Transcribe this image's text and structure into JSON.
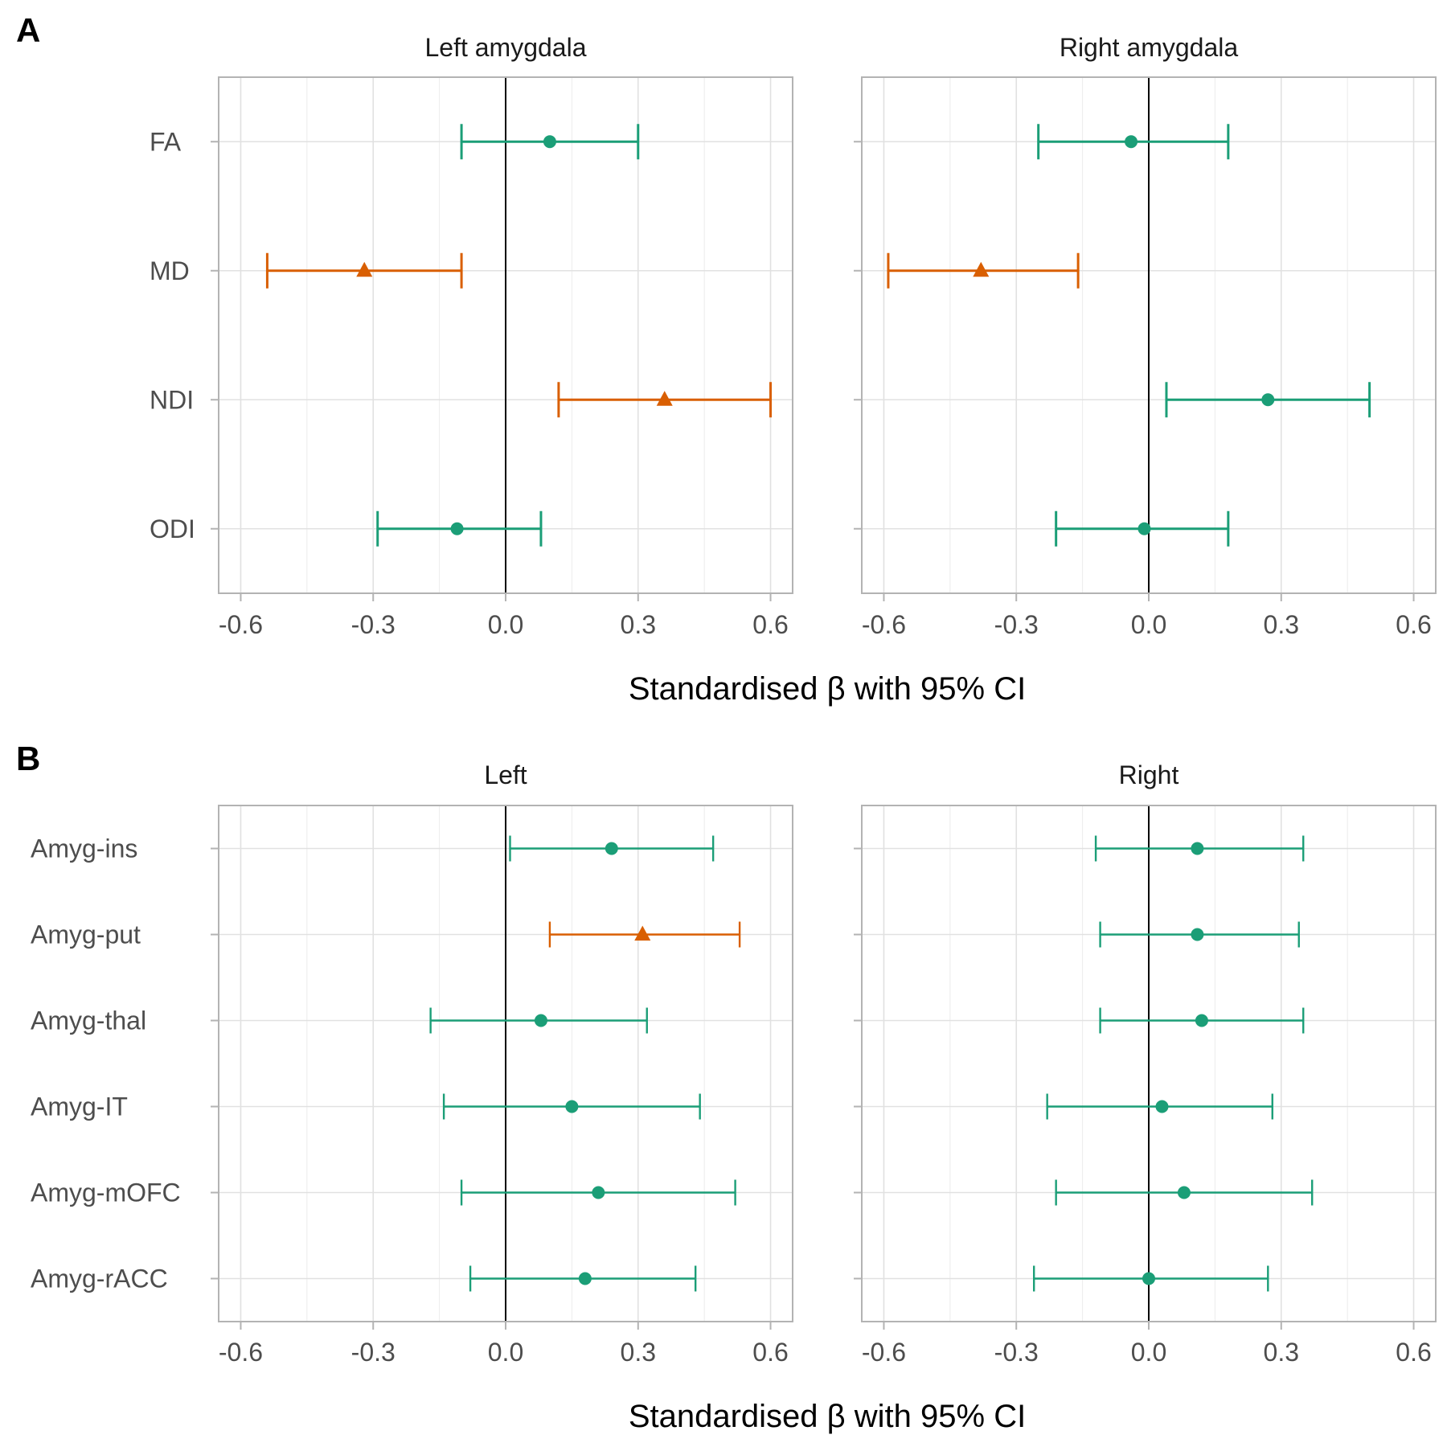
{
  "figure": {
    "palette": {
      "nonsig": "#1b9e77",
      "sig": "#d95f02",
      "grid": "#e1e1e1",
      "frame": "#b3b3b3",
      "text": "#4d4d4d"
    }
  },
  "chart_data": [
    {
      "type": "scatter",
      "variant": "forest-plot",
      "panel_letter": "A",
      "xlabel": "Standardised β with 95% CI",
      "xlim": [
        -0.65,
        0.65
      ],
      "xticks": [
        -0.6,
        -0.3,
        0.0,
        0.3,
        0.6
      ],
      "xtick_labels": [
        "-0.6",
        "-0.3",
        "0.0",
        "0.3",
        "0.6"
      ],
      "reference_line": 0,
      "grid": true,
      "categories": [
        "FA",
        "MD",
        "NDI",
        "ODI"
      ],
      "facets": [
        {
          "title": "Left amygdala",
          "estimates": [
            0.1,
            -0.32,
            0.36,
            -0.11
          ],
          "lower": [
            -0.1,
            -0.54,
            0.12,
            -0.29
          ],
          "upper": [
            0.3,
            -0.1,
            0.6,
            0.08
          ],
          "significant": [
            false,
            true,
            true,
            false
          ]
        },
        {
          "title": "Right amygdala",
          "estimates": [
            -0.04,
            -0.38,
            0.27,
            -0.01
          ],
          "lower": [
            -0.25,
            -0.59,
            0.04,
            -0.21
          ],
          "upper": [
            0.18,
            -0.16,
            0.5,
            0.18
          ],
          "significant": [
            false,
            true,
            false,
            false
          ]
        }
      ]
    },
    {
      "type": "scatter",
      "variant": "forest-plot",
      "panel_letter": "B",
      "xlabel": "Standardised β with 95% CI",
      "xlim": [
        -0.65,
        0.65
      ],
      "xticks": [
        -0.6,
        -0.3,
        0.0,
        0.3,
        0.6
      ],
      "xtick_labels": [
        "-0.6",
        "-0.3",
        "0.0",
        "0.3",
        "0.6"
      ],
      "reference_line": 0,
      "grid": true,
      "categories": [
        "Amyg-ins",
        "Amyg-put",
        "Amyg-thal",
        "Amyg-IT",
        "Amyg-mOFC",
        "Amyg-rACC"
      ],
      "facets": [
        {
          "title": "Left",
          "estimates": [
            0.24,
            0.31,
            0.08,
            0.15,
            0.21,
            0.18
          ],
          "lower": [
            0.01,
            0.1,
            -0.17,
            -0.14,
            -0.1,
            -0.08
          ],
          "upper": [
            0.47,
            0.53,
            0.32,
            0.44,
            0.52,
            0.43
          ],
          "significant": [
            false,
            true,
            false,
            false,
            false,
            false
          ]
        },
        {
          "title": "Right",
          "estimates": [
            0.11,
            0.11,
            0.12,
            0.03,
            0.08,
            0.0
          ],
          "lower": [
            -0.12,
            -0.11,
            -0.11,
            -0.23,
            -0.21,
            -0.26
          ],
          "upper": [
            0.35,
            0.34,
            0.35,
            0.28,
            0.37,
            0.27
          ],
          "significant": [
            false,
            false,
            false,
            false,
            false,
            false
          ]
        }
      ]
    }
  ]
}
